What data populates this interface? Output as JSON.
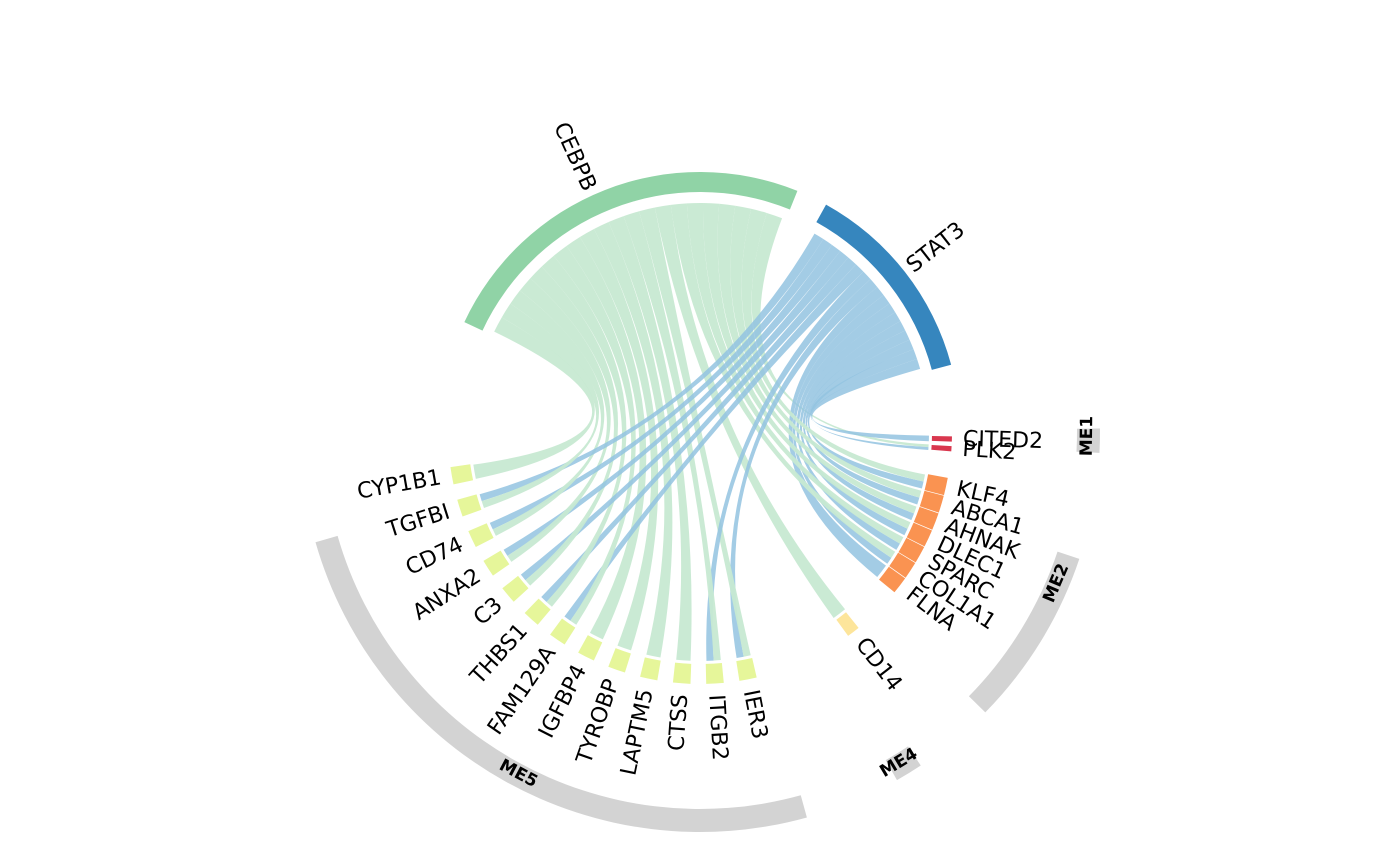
{
  "diagram": {
    "type": "chord",
    "colors": {
      "ring": "#d3d3d3",
      "cebpb": "#90d3a6",
      "stat3": "#3686be",
      "me1": "#d9374e",
      "me2": "#fa9351",
      "me4": "#fde59b",
      "me5": "#e6f69a",
      "ribbon_cebpb": "#c7e9d2",
      "ribbon_stat3": "#93c3e0"
    },
    "sources": [
      {
        "name": "CEBPB",
        "color_key": "cebpb",
        "ribbon_key": "ribbon_cebpb"
      },
      {
        "name": "STAT3",
        "color_key": "stat3",
        "ribbon_key": "ribbon_stat3"
      }
    ],
    "groups": [
      {
        "name": "ME1",
        "color_key": "me1",
        "nodes": [
          "CITED2",
          "PLK2"
        ]
      },
      {
        "name": "ME2",
        "color_key": "me2",
        "nodes": [
          "KLF4",
          "ABCA1",
          "AHNAK",
          "DLEC1",
          "SPARC",
          "COL1A1",
          "FLNA"
        ]
      },
      {
        "name": "ME4",
        "color_key": "me4",
        "nodes": [
          "CD14"
        ]
      },
      {
        "name": "ME5",
        "color_key": "me5",
        "nodes": [
          "IER3",
          "ITGB2",
          "CTSS",
          "LAPTM5",
          "TYROBP",
          "IGFBP4",
          "FAM129A",
          "THBS1",
          "C3",
          "ANXA2",
          "CD74",
          "TGFBI",
          "CYP1B1"
        ]
      }
    ],
    "links": [
      [
        "CEBPB",
        "PLK2"
      ],
      [
        "STAT3",
        "CITED2"
      ],
      [
        "STAT3",
        "PLK2"
      ],
      [
        "STAT3",
        "KLF4"
      ],
      [
        "STAT3",
        "ABCA1"
      ],
      [
        "STAT3",
        "AHNAK"
      ],
      [
        "STAT3",
        "DLEC1"
      ],
      [
        "STAT3",
        "SPARC"
      ],
      [
        "STAT3",
        "COL1A1"
      ],
      [
        "STAT3",
        "FLNA"
      ],
      [
        "CEBPB",
        "KLF4"
      ],
      [
        "CEBPB",
        "ABCA1"
      ],
      [
        "CEBPB",
        "AHNAK"
      ],
      [
        "CEBPB",
        "DLEC1"
      ],
      [
        "CEBPB",
        "SPARC"
      ],
      [
        "CEBPB",
        "COL1A1"
      ],
      [
        "CEBPB",
        "CD14"
      ],
      [
        "STAT3",
        "IER3"
      ],
      [
        "CEBPB",
        "IER3"
      ],
      [
        "STAT3",
        "ITGB2"
      ],
      [
        "CEBPB",
        "ITGB2"
      ],
      [
        "CEBPB",
        "CTSS"
      ],
      [
        "CEBPB",
        "LAPTM5"
      ],
      [
        "CEBPB",
        "TYROBP"
      ],
      [
        "CEBPB",
        "IGFBP4"
      ],
      [
        "STAT3",
        "FAM129A"
      ],
      [
        "CEBPB",
        "FAM129A"
      ],
      [
        "STAT3",
        "THBS1"
      ],
      [
        "CEBPB",
        "THBS1"
      ],
      [
        "STAT3",
        "C3"
      ],
      [
        "CEBPB",
        "C3"
      ],
      [
        "STAT3",
        "ANXA2"
      ],
      [
        "CEBPB",
        "ANXA2"
      ],
      [
        "STAT3",
        "CD74"
      ],
      [
        "CEBPB",
        "CD74"
      ],
      [
        "STAT3",
        "TGFBI"
      ],
      [
        "CEBPB",
        "TGFBI"
      ],
      [
        "CEBPB",
        "CYP1B1"
      ]
    ]
  }
}
